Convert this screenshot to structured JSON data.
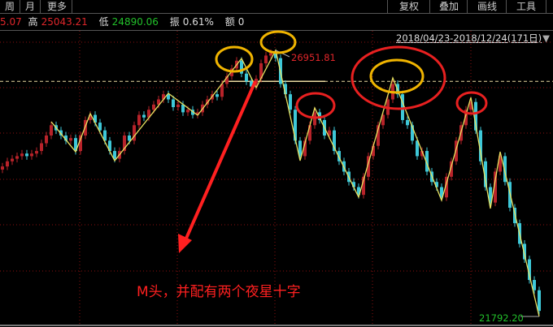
{
  "toolbar": {
    "left": [
      "周",
      "月",
      "更多"
    ],
    "right": [
      "复权",
      "叠加",
      "画线",
      "工具"
    ]
  },
  "quote": {
    "open_partial": "5.07",
    "high_label": "高",
    "high": "25043.21",
    "low_label": "低",
    "low": "24890.06",
    "amplitude_label": "振",
    "amplitude": "0.61%",
    "amount_label": "额",
    "amount": "0"
  },
  "date_range": "2018/04/23-2018/12/24(171日)",
  "date_range_arrow": "▼",
  "colors": {
    "up": "#b8232a",
    "down": "#3ec8d8",
    "zigzag": "#e8e060",
    "grid": "#8b1010",
    "annotation": "#ff2020",
    "yellow_circle": "#f0b400",
    "red_circle": "#e82020"
  },
  "annotation_text": "M头，并配有两个夜星十字",
  "chart_data": {
    "type": "candlestick",
    "max_label": "26951.81",
    "min_label": "21792.20",
    "price_range": [
      21792.2,
      26951.81
    ],
    "reference_level": 26350,
    "closes": [
      24700,
      24800,
      24850,
      24900,
      24950,
      24900,
      24950,
      25000,
      25150,
      25300,
      25500,
      25400,
      25300,
      25200,
      25250,
      25000,
      25300,
      25600,
      25700,
      25550,
      25400,
      25200,
      25000,
      24850,
      25000,
      25300,
      25200,
      25500,
      25700,
      25650,
      25800,
      25900,
      26000,
      26100,
      26000,
      25850,
      25900,
      25750,
      25800,
      25700,
      25750,
      25900,
      26000,
      26100,
      26050,
      26300,
      26450,
      26600,
      26750,
      26500,
      26350,
      26250,
      26400,
      26700,
      26850,
      26900,
      26800,
      26300,
      26100,
      25800,
      25200,
      24900,
      25200,
      25500,
      25750,
      25600,
      25300,
      25400,
      25000,
      24800,
      24600,
      24400,
      24300,
      24150,
      24500,
      24900,
      25100,
      25500,
      25700,
      26000,
      26300,
      26100,
      25600,
      25500,
      25200,
      24900,
      25000,
      24600,
      24400,
      24300,
      24100,
      24500,
      24800,
      25200,
      25500,
      25800,
      25950,
      25400,
      24800,
      24300,
      24000,
      24600,
      24900,
      24400,
      23900,
      23600,
      23200,
      22900,
      22500,
      22300,
      21900
    ],
    "zigzag": [
      25567,
      24985,
      25725,
      24812,
      26118,
      25693,
      26794,
      26228,
      26952,
      24812,
      25835,
      24105,
      26417,
      24042,
      26039,
      23885,
      24985,
      21792
    ],
    "zigzag_index": [
      10,
      15,
      18,
      23,
      34,
      40,
      49,
      52,
      56,
      61,
      64,
      73,
      80,
      90,
      96,
      100,
      102,
      110
    ]
  }
}
